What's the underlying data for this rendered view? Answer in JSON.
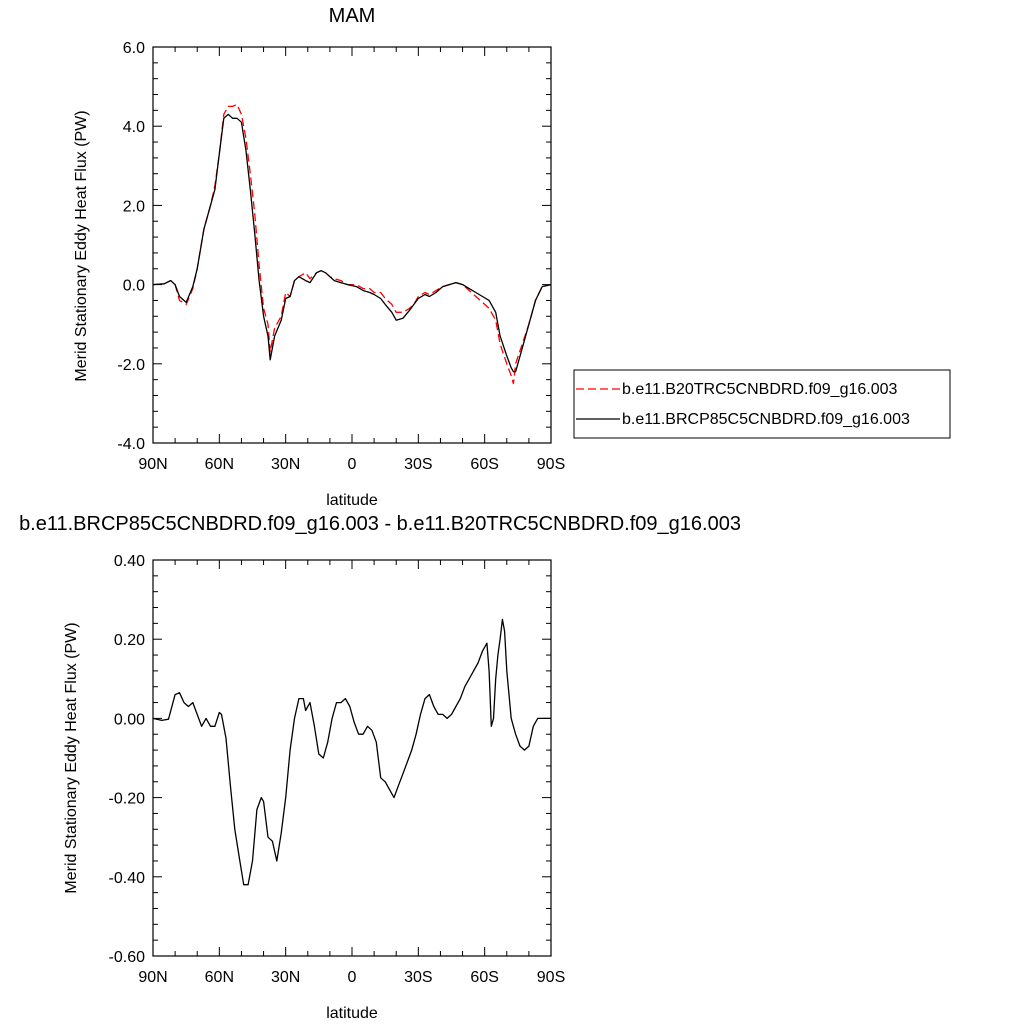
{
  "chart_data": [
    {
      "type": "line",
      "title": "MAM",
      "xlabel": "latitude",
      "ylabel": "Merid Stationary Eddy Heat Flux (PW)",
      "xlim": [
        90,
        -90
      ],
      "ylim": [
        -4.0,
        6.0
      ],
      "x_ticks": [
        90,
        60,
        30,
        0,
        -30,
        -60,
        -90
      ],
      "x_tick_labels": [
        "90N",
        "60N",
        "30N",
        "0",
        "30S",
        "60S",
        "90S"
      ],
      "y_ticks": [
        -4.0,
        -2.0,
        0.0,
        2.0,
        4.0,
        6.0
      ],
      "y_tick_labels": [
        "-4.0",
        "-2.0",
        "0.0",
        "2.0",
        "4.0",
        "6.0"
      ],
      "grid": false,
      "legend_position": "right",
      "series": [
        {
          "name": "b.e11.B20TRC5CNBDRD.f09_g16.003",
          "color": "#ff0000",
          "dash": "dashed",
          "points": [
            [
              90,
              0
            ],
            [
              85,
              0.02
            ],
            [
              82,
              0.1
            ],
            [
              80,
              0
            ],
            [
              78,
              -0.4
            ],
            [
              75,
              -0.5
            ],
            [
              72,
              -0.1
            ],
            [
              70,
              0.4
            ],
            [
              67,
              1.4
            ],
            [
              64,
              2.0
            ],
            [
              62,
              2.5
            ],
            [
              60,
              3.3
            ],
            [
              58,
              4.3
            ],
            [
              56,
              4.5
            ],
            [
              54,
              4.5
            ],
            [
              52,
              4.55
            ],
            [
              50,
              4.3
            ],
            [
              48,
              3.7
            ],
            [
              46,
              2.8
            ],
            [
              44,
              1.8
            ],
            [
              42,
              0.5
            ],
            [
              40,
              -0.6
            ],
            [
              38,
              -1.0
            ],
            [
              37,
              -1.7
            ],
            [
              35,
              -1.1
            ],
            [
              32,
              -0.8
            ],
            [
              30,
              -0.2
            ],
            [
              28,
              -0.3
            ],
            [
              26,
              0.1
            ],
            [
              24,
              0.2
            ],
            [
              21,
              0.3
            ],
            [
              19,
              0.15
            ],
            [
              16,
              0.3
            ],
            [
              14,
              0.35
            ],
            [
              12,
              0.3
            ],
            [
              10,
              0.2
            ],
            [
              8,
              0.15
            ],
            [
              5,
              0.1
            ],
            [
              2,
              0.0
            ],
            [
              -2,
              0.0
            ],
            [
              -5,
              -0.1
            ],
            [
              -8,
              -0.1
            ],
            [
              -10,
              -0.2
            ],
            [
              -13,
              -0.2
            ],
            [
              -15,
              -0.35
            ],
            [
              -18,
              -0.5
            ],
            [
              -20,
              -0.7
            ],
            [
              -23,
              -0.7
            ],
            [
              -26,
              -0.6
            ],
            [
              -28,
              -0.5
            ],
            [
              -30,
              -0.3
            ],
            [
              -33,
              -0.2
            ],
            [
              -35,
              -0.25
            ],
            [
              -38,
              -0.15
            ],
            [
              -41,
              -0.05
            ],
            [
              -44,
              0.0
            ],
            [
              -47,
              0.05
            ],
            [
              -50,
              0.0
            ],
            [
              -53,
              -0.15
            ],
            [
              -56,
              -0.3
            ],
            [
              -59,
              -0.45
            ],
            [
              -62,
              -0.6
            ],
            [
              -65,
              -0.9
            ],
            [
              -67,
              -1.5
            ],
            [
              -70,
              -2.0
            ],
            [
              -72,
              -2.3
            ],
            [
              -73,
              -2.5
            ],
            [
              -74,
              -2.0
            ],
            [
              -77,
              -1.5
            ],
            [
              -80,
              -1.0
            ],
            [
              -83,
              -0.4
            ],
            [
              -86,
              -0.05
            ],
            [
              -90,
              0
            ]
          ]
        },
        {
          "name": "b.e11.BRCP85C5CNBDRD.f09_g16.003",
          "color": "#000000",
          "dash": "solid",
          "points": [
            [
              90,
              0
            ],
            [
              85,
              0.02
            ],
            [
              82,
              0.1
            ],
            [
              80,
              0
            ],
            [
              78,
              -0.3
            ],
            [
              75,
              -0.45
            ],
            [
              72,
              -0.05
            ],
            [
              70,
              0.4
            ],
            [
              67,
              1.4
            ],
            [
              64,
              2.0
            ],
            [
              62,
              2.4
            ],
            [
              60,
              3.3
            ],
            [
              58,
              4.2
            ],
            [
              56,
              4.3
            ],
            [
              54,
              4.2
            ],
            [
              52,
              4.2
            ],
            [
              50,
              4.1
            ],
            [
              48,
              3.4
            ],
            [
              46,
              2.4
            ],
            [
              44,
              1.3
            ],
            [
              42,
              0.1
            ],
            [
              40,
              -0.8
            ],
            [
              38,
              -1.3
            ],
            [
              37,
              -1.9
            ],
            [
              35,
              -1.3
            ],
            [
              32,
              -0.9
            ],
            [
              30,
              -0.35
            ],
            [
              28,
              -0.3
            ],
            [
              26,
              0.1
            ],
            [
              24,
              0.2
            ],
            [
              21,
              0.1
            ],
            [
              19,
              0.05
            ],
            [
              16,
              0.3
            ],
            [
              14,
              0.35
            ],
            [
              12,
              0.3
            ],
            [
              10,
              0.2
            ],
            [
              8,
              0.1
            ],
            [
              5,
              0.05
            ],
            [
              2,
              0.0
            ],
            [
              -2,
              -0.05
            ],
            [
              -5,
              -0.15
            ],
            [
              -8,
              -0.2
            ],
            [
              -10,
              -0.25
            ],
            [
              -13,
              -0.35
            ],
            [
              -15,
              -0.5
            ],
            [
              -18,
              -0.7
            ],
            [
              -20,
              -0.9
            ],
            [
              -23,
              -0.85
            ],
            [
              -26,
              -0.65
            ],
            [
              -28,
              -0.5
            ],
            [
              -30,
              -0.35
            ],
            [
              -33,
              -0.25
            ],
            [
              -35,
              -0.3
            ],
            [
              -38,
              -0.2
            ],
            [
              -41,
              -0.05
            ],
            [
              -44,
              0.0
            ],
            [
              -47,
              0.05
            ],
            [
              -50,
              0.0
            ],
            [
              -53,
              -0.1
            ],
            [
              -56,
              -0.2
            ],
            [
              -59,
              -0.3
            ],
            [
              -62,
              -0.4
            ],
            [
              -65,
              -0.7
            ],
            [
              -67,
              -1.3
            ],
            [
              -70,
              -1.8
            ],
            [
              -72,
              -2.1
            ],
            [
              -73,
              -2.2
            ],
            [
              -74,
              -2.2
            ],
            [
              -77,
              -1.6
            ],
            [
              -80,
              -1.0
            ],
            [
              -83,
              -0.4
            ],
            [
              -86,
              -0.05
            ],
            [
              -90,
              0
            ]
          ]
        }
      ]
    },
    {
      "type": "line",
      "title": "b.e11.BRCP85C5CNBDRD.f09_g16.003 - b.e11.B20TRC5CNBDRD.f09_g16.003",
      "xlabel": "latitude",
      "ylabel": "Merid Stationary Eddy Heat Flux (PW)",
      "xlim": [
        90,
        -90
      ],
      "ylim": [
        -0.6,
        0.4
      ],
      "x_ticks": [
        90,
        60,
        30,
        0,
        -30,
        -60,
        -90
      ],
      "x_tick_labels": [
        "90N",
        "60N",
        "30N",
        "0",
        "30S",
        "60S",
        "90S"
      ],
      "y_ticks": [
        -0.6,
        -0.4,
        -0.2,
        0.0,
        0.2,
        0.4
      ],
      "y_tick_labels": [
        "-0.60",
        "-0.40",
        "-0.20",
        "0.00",
        "0.20",
        "0.40"
      ],
      "grid": false,
      "series": [
        {
          "color": "#000000",
          "dash": "solid",
          "points": [
            [
              90,
              0
            ],
            [
              86,
              -0.005
            ],
            [
              83,
              -0.002
            ],
            [
              80,
              0.06
            ],
            [
              78,
              0.065
            ],
            [
              76,
              0.04
            ],
            [
              74,
              0.03
            ],
            [
              72,
              0.04
            ],
            [
              70,
              0.01
            ],
            [
              68,
              -0.02
            ],
            [
              66,
              0.0
            ],
            [
              64,
              -0.02
            ],
            [
              62,
              -0.02
            ],
            [
              60,
              0.015
            ],
            [
              59,
              0.01
            ],
            [
              57,
              -0.05
            ],
            [
              55,
              -0.17
            ],
            [
              53,
              -0.28
            ],
            [
              51,
              -0.35
            ],
            [
              49,
              -0.42
            ],
            [
              47,
              -0.42
            ],
            [
              45,
              -0.36
            ],
            [
              43,
              -0.23
            ],
            [
              41,
              -0.2
            ],
            [
              40,
              -0.21
            ],
            [
              38,
              -0.3
            ],
            [
              36,
              -0.31
            ],
            [
              34,
              -0.36
            ],
            [
              32,
              -0.29
            ],
            [
              30,
              -0.2
            ],
            [
              28,
              -0.08
            ],
            [
              26,
              0.0
            ],
            [
              24,
              0.05
            ],
            [
              22,
              0.05
            ],
            [
              21,
              0.02
            ],
            [
              19,
              0.04
            ],
            [
              17,
              -0.02
            ],
            [
              15,
              -0.09
            ],
            [
              13,
              -0.1
            ],
            [
              11,
              -0.06
            ],
            [
              9,
              0.0
            ],
            [
              7,
              0.04
            ],
            [
              5,
              0.04
            ],
            [
              3,
              0.05
            ],
            [
              1,
              0.03
            ],
            [
              -1,
              -0.01
            ],
            [
              -3,
              -0.04
            ],
            [
              -5,
              -0.04
            ],
            [
              -7,
              -0.02
            ],
            [
              -9,
              -0.03
            ],
            [
              -11,
              -0.06
            ],
            [
              -13,
              -0.15
            ],
            [
              -15,
              -0.16
            ],
            [
              -17,
              -0.18
            ],
            [
              -19,
              -0.2
            ],
            [
              -21,
              -0.17
            ],
            [
              -23,
              -0.14
            ],
            [
              -25,
              -0.11
            ],
            [
              -27,
              -0.08
            ],
            [
              -29,
              -0.04
            ],
            [
              -31,
              0.01
            ],
            [
              -33,
              0.05
            ],
            [
              -35,
              0.06
            ],
            [
              -37,
              0.03
            ],
            [
              -39,
              0.01
            ],
            [
              -41,
              0.01
            ],
            [
              -43,
              0.0
            ],
            [
              -45,
              0.01
            ],
            [
              -47,
              0.03
            ],
            [
              -49,
              0.05
            ],
            [
              -51,
              0.08
            ],
            [
              -53,
              0.1
            ],
            [
              -55,
              0.12
            ],
            [
              -57,
              0.14
            ],
            [
              -59,
              0.17
            ],
            [
              -61,
              0.19
            ],
            [
              -62,
              0.12
            ],
            [
              -63,
              -0.02
            ],
            [
              -64,
              0.0
            ],
            [
              -65,
              0.1
            ],
            [
              -66,
              0.16
            ],
            [
              -67,
              0.2
            ],
            [
              -68,
              0.25
            ],
            [
              -69,
              0.22
            ],
            [
              -70,
              0.12
            ],
            [
              -72,
              0.0
            ],
            [
              -74,
              -0.04
            ],
            [
              -76,
              -0.07
            ],
            [
              -78,
              -0.08
            ],
            [
              -80,
              -0.07
            ],
            [
              -82,
              -0.02
            ],
            [
              -84,
              0.0
            ],
            [
              -90,
              0
            ]
          ]
        }
      ]
    }
  ]
}
